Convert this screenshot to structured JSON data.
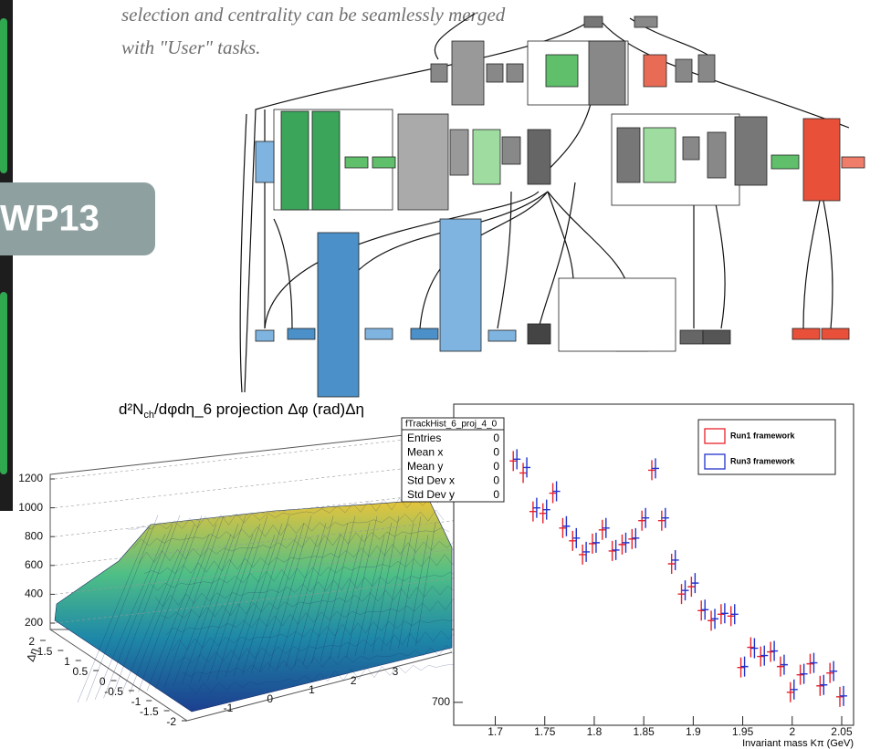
{
  "caption": {
    "line1": "selection and centrality can be seamlessly merged",
    "line2": "with \"User\" tasks."
  },
  "badge": "WP13",
  "histogram_3d": {
    "title_parts": [
      "d²N",
      "ch",
      "/dφdη_6 projection Δφ (rad)Δη"
    ],
    "zticks": [
      200,
      400,
      600,
      800,
      1000,
      1200
    ],
    "eta_label": "Δη",
    "eta_ticks": [
      2,
      1.5,
      1,
      0.5,
      0,
      -0.5,
      -1,
      -1.5,
      -2
    ],
    "phi_ticks": [
      -1,
      0,
      1,
      2,
      3
    ]
  },
  "stats": {
    "name": "fTrackHist_6_proj_4_0",
    "rows": [
      [
        "Entries",
        0
      ],
      [
        "Mean x",
        0
      ],
      [
        "Mean y",
        0
      ],
      [
        "Std Dev x",
        0
      ],
      [
        "Std Dev y",
        0
      ]
    ]
  },
  "chart_data": {
    "type": "scatter",
    "x_label": "Invariant mass Kπ (GeV)",
    "x": [
      1.72,
      1.73,
      1.74,
      1.75,
      1.76,
      1.77,
      1.78,
      1.79,
      1.8,
      1.81,
      1.82,
      1.83,
      1.84,
      1.85,
      1.86,
      1.87,
      1.88,
      1.89,
      1.9,
      1.91,
      1.92,
      1.93,
      1.94,
      1.95,
      1.96,
      1.97,
      1.98,
      1.99,
      2.0,
      2.01,
      2.02,
      2.03,
      2.04,
      2.05
    ],
    "series": [
      {
        "name": "Run1 framework",
        "color": "#e8222b",
        "values": [
          1226,
          1200,
          1116,
          1112,
          1156,
          1080,
          1052,
          1022,
          1046,
          1076,
          1030,
          1044,
          1056,
          1096,
          1206,
          1096,
          1002,
          936,
          952,
          900,
          878,
          892,
          888,
          776,
          820,
          800,
          810,
          778,
          722,
          760,
          784,
          736,
          764,
          712
        ]
      },
      {
        "name": "Run3 framework",
        "color": "#2233cc",
        "values": [
          1230,
          1212,
          1124,
          1120,
          1160,
          1084,
          1058,
          1028,
          1048,
          1080,
          1032,
          1048,
          1058,
          1102,
          1210,
          1102,
          1010,
          944,
          960,
          902,
          882,
          894,
          892,
          778,
          818,
          802,
          812,
          782,
          728,
          762,
          786,
          738,
          768,
          714
        ]
      }
    ],
    "xlim": [
      1.658,
      2.062
    ],
    "xticks": [
      1.7,
      1.75,
      1.8,
      1.85,
      1.9,
      1.95,
      2,
      2.05
    ],
    "ylim": [
      650,
      1350
    ],
    "yticks": [
      700
    ]
  }
}
